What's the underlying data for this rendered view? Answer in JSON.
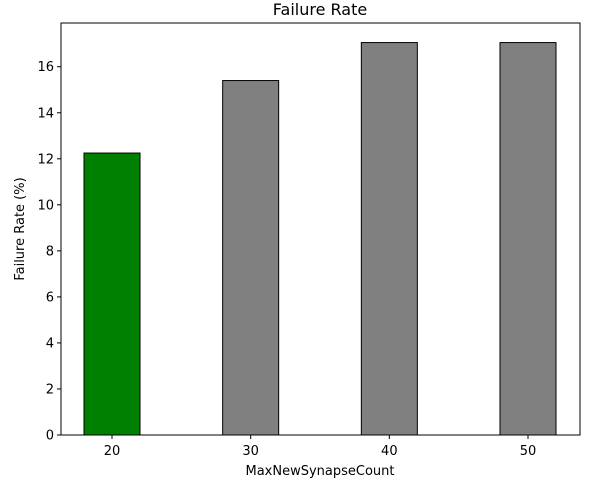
{
  "chart_data": {
    "type": "bar",
    "title": "Failure Rate",
    "xlabel": "MaxNewSynapseCount",
    "ylabel": "Failure Rate (%)",
    "categories": [
      "20",
      "30",
      "40",
      "50"
    ],
    "values": [
      12.25,
      15.4,
      17.05,
      17.05
    ],
    "bar_colors": [
      "#008000",
      "#808080",
      "#808080",
      "#808080"
    ],
    "edge_color": "#000000",
    "yticks": [
      0,
      2,
      4,
      6,
      8,
      10,
      12,
      14,
      16
    ],
    "ylim": [
      0,
      17.9
    ],
    "grid": false,
    "legend": "none"
  }
}
